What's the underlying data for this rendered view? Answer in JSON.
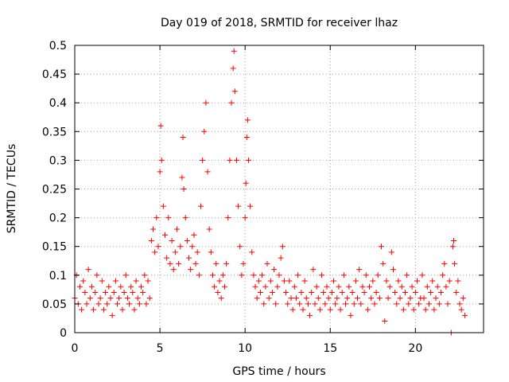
{
  "chart_data": {
    "type": "scatter",
    "title": "Day 019 of 2018, SRMTID for receiver lhaz",
    "xlabel": "GPS time / hours",
    "ylabel": "SRMTID / TECUs",
    "xlim": [
      0,
      24
    ],
    "ylim": [
      0,
      0.5
    ],
    "xticks": [
      0,
      5,
      10,
      15,
      20
    ],
    "xtick_labels": [
      "0",
      "5",
      "10",
      "15",
      "20"
    ],
    "yticks": [
      0,
      0.05,
      0.1,
      0.15,
      0.2,
      0.25,
      0.3,
      0.35,
      0.4,
      0.45,
      0.5
    ],
    "ytick_labels": [
      "0",
      "0.05",
      "0.1",
      "0.15",
      "0.2",
      "0.25",
      "0.3",
      "0.35",
      "0.4",
      "0.45",
      "0.5"
    ],
    "grid": true,
    "marker": "plus",
    "color": "#ff0000",
    "series": [
      {
        "name": "SRMTID",
        "points": [
          [
            0.0,
            0.06
          ],
          [
            0.1,
            0.1
          ],
          [
            0.2,
            0.05
          ],
          [
            0.3,
            0.08
          ],
          [
            0.4,
            0.04
          ],
          [
            0.5,
            0.09
          ],
          [
            0.6,
            0.07
          ],
          [
            0.7,
            0.05
          ],
          [
            0.8,
            0.11
          ],
          [
            0.9,
            0.06
          ],
          [
            1.0,
            0.08
          ],
          [
            1.1,
            0.04
          ],
          [
            1.2,
            0.07
          ],
          [
            1.3,
            0.1
          ],
          [
            1.4,
            0.05
          ],
          [
            1.5,
            0.06
          ],
          [
            1.6,
            0.09
          ],
          [
            1.7,
            0.04
          ],
          [
            1.8,
            0.07
          ],
          [
            1.9,
            0.05
          ],
          [
            2.0,
            0.08
          ],
          [
            2.1,
            0.06
          ],
          [
            2.2,
            0.03
          ],
          [
            2.3,
            0.07
          ],
          [
            2.4,
            0.09
          ],
          [
            2.5,
            0.05
          ],
          [
            2.6,
            0.06
          ],
          [
            2.7,
            0.08
          ],
          [
            2.8,
            0.04
          ],
          [
            2.9,
            0.07
          ],
          [
            3.0,
            0.1
          ],
          [
            3.1,
            0.06
          ],
          [
            3.2,
            0.05
          ],
          [
            3.3,
            0.08
          ],
          [
            3.4,
            0.07
          ],
          [
            3.5,
            0.04
          ],
          [
            3.6,
            0.09
          ],
          [
            3.7,
            0.06
          ],
          [
            3.8,
            0.05
          ],
          [
            3.9,
            0.08
          ],
          [
            4.0,
            0.07
          ],
          [
            4.1,
            0.1
          ],
          [
            4.2,
            0.05
          ],
          [
            4.3,
            0.09
          ],
          [
            4.4,
            0.06
          ],
          [
            4.5,
            0.16
          ],
          [
            4.6,
            0.18
          ],
          [
            4.7,
            0.14
          ],
          [
            4.8,
            0.2
          ],
          [
            4.9,
            0.15
          ],
          [
            5.0,
            0.28
          ],
          [
            5.05,
            0.36
          ],
          [
            5.1,
            0.3
          ],
          [
            5.2,
            0.22
          ],
          [
            5.3,
            0.17
          ],
          [
            5.4,
            0.13
          ],
          [
            5.5,
            0.2
          ],
          [
            5.6,
            0.12
          ],
          [
            5.7,
            0.16
          ],
          [
            5.8,
            0.11
          ],
          [
            5.9,
            0.14
          ],
          [
            6.0,
            0.18
          ],
          [
            6.1,
            0.12
          ],
          [
            6.2,
            0.15
          ],
          [
            6.3,
            0.27
          ],
          [
            6.35,
            0.34
          ],
          [
            6.4,
            0.25
          ],
          [
            6.5,
            0.2
          ],
          [
            6.6,
            0.16
          ],
          [
            6.7,
            0.13
          ],
          [
            6.8,
            0.11
          ],
          [
            6.9,
            0.15
          ],
          [
            7.0,
            0.17
          ],
          [
            7.1,
            0.12
          ],
          [
            7.2,
            0.14
          ],
          [
            7.3,
            0.1
          ],
          [
            7.4,
            0.22
          ],
          [
            7.5,
            0.3
          ],
          [
            7.6,
            0.35
          ],
          [
            7.7,
            0.4
          ],
          [
            7.8,
            0.28
          ],
          [
            7.9,
            0.18
          ],
          [
            8.0,
            0.14
          ],
          [
            8.1,
            0.1
          ],
          [
            8.2,
            0.08
          ],
          [
            8.3,
            0.12
          ],
          [
            8.4,
            0.07
          ],
          [
            8.5,
            0.09
          ],
          [
            8.6,
            0.06
          ],
          [
            8.7,
            0.1
          ],
          [
            8.8,
            0.08
          ],
          [
            8.9,
            0.12
          ],
          [
            9.0,
            0.2
          ],
          [
            9.1,
            0.3
          ],
          [
            9.2,
            0.4
          ],
          [
            9.3,
            0.46
          ],
          [
            9.35,
            0.49
          ],
          [
            9.4,
            0.42
          ],
          [
            9.5,
            0.3
          ],
          [
            9.6,
            0.22
          ],
          [
            9.7,
            0.15
          ],
          [
            9.8,
            0.1
          ],
          [
            9.9,
            0.12
          ],
          [
            10.0,
            0.2
          ],
          [
            10.05,
            0.26
          ],
          [
            10.1,
            0.34
          ],
          [
            10.15,
            0.37
          ],
          [
            10.2,
            0.3
          ],
          [
            10.3,
            0.22
          ],
          [
            10.4,
            0.14
          ],
          [
            10.5,
            0.1
          ],
          [
            10.6,
            0.08
          ],
          [
            10.7,
            0.06
          ],
          [
            10.8,
            0.09
          ],
          [
            10.9,
            0.07
          ],
          [
            11.0,
            0.1
          ],
          [
            11.1,
            0.05
          ],
          [
            11.2,
            0.08
          ],
          [
            11.3,
            0.12
          ],
          [
            11.4,
            0.06
          ],
          [
            11.5,
            0.09
          ],
          [
            11.6,
            0.07
          ],
          [
            11.7,
            0.11
          ],
          [
            11.8,
            0.05
          ],
          [
            11.9,
            0.08
          ],
          [
            12.0,
            0.1
          ],
          [
            12.1,
            0.13
          ],
          [
            12.2,
            0.15
          ],
          [
            12.3,
            0.09
          ],
          [
            12.4,
            0.07
          ],
          [
            12.5,
            0.05
          ],
          [
            12.6,
            0.09
          ],
          [
            12.7,
            0.06
          ],
          [
            12.8,
            0.04
          ],
          [
            12.9,
            0.08
          ],
          [
            13.0,
            0.06
          ],
          [
            13.1,
            0.1
          ],
          [
            13.2,
            0.05
          ],
          [
            13.3,
            0.07
          ],
          [
            13.4,
            0.04
          ],
          [
            13.5,
            0.09
          ],
          [
            13.6,
            0.06
          ],
          [
            13.7,
            0.05
          ],
          [
            13.8,
            0.03
          ],
          [
            13.9,
            0.07
          ],
          [
            14.0,
            0.11
          ],
          [
            14.1,
            0.05
          ],
          [
            14.2,
            0.08
          ],
          [
            14.3,
            0.06
          ],
          [
            14.4,
            0.04
          ],
          [
            14.5,
            0.1
          ],
          [
            14.6,
            0.07
          ],
          [
            14.7,
            0.05
          ],
          [
            14.8,
            0.08
          ],
          [
            14.9,
            0.06
          ],
          [
            15.0,
            0.04
          ],
          [
            15.1,
            0.07
          ],
          [
            15.2,
            0.09
          ],
          [
            15.3,
            0.05
          ],
          [
            15.4,
            0.06
          ],
          [
            15.5,
            0.08
          ],
          [
            15.6,
            0.04
          ],
          [
            15.7,
            0.07
          ],
          [
            15.8,
            0.1
          ],
          [
            15.9,
            0.05
          ],
          [
            16.0,
            0.06
          ],
          [
            16.1,
            0.08
          ],
          [
            16.2,
            0.03
          ],
          [
            16.3,
            0.07
          ],
          [
            16.4,
            0.05
          ],
          [
            16.5,
            0.09
          ],
          [
            16.6,
            0.06
          ],
          [
            16.7,
            0.11
          ],
          [
            16.8,
            0.05
          ],
          [
            16.9,
            0.08
          ],
          [
            17.0,
            0.07
          ],
          [
            17.1,
            0.1
          ],
          [
            17.2,
            0.04
          ],
          [
            17.3,
            0.08
          ],
          [
            17.4,
            0.06
          ],
          [
            17.5,
            0.09
          ],
          [
            17.6,
            0.05
          ],
          [
            17.7,
            0.07
          ],
          [
            17.8,
            0.1
          ],
          [
            17.9,
            0.06
          ],
          [
            18.0,
            0.15
          ],
          [
            18.1,
            0.12
          ],
          [
            18.2,
            0.02
          ],
          [
            18.3,
            0.09
          ],
          [
            18.4,
            0.06
          ],
          [
            18.5,
            0.08
          ],
          [
            18.6,
            0.14
          ],
          [
            18.7,
            0.11
          ],
          [
            18.8,
            0.07
          ],
          [
            18.9,
            0.05
          ],
          [
            19.0,
            0.09
          ],
          [
            19.1,
            0.06
          ],
          [
            19.2,
            0.08
          ],
          [
            19.3,
            0.04
          ],
          [
            19.4,
            0.07
          ],
          [
            19.5,
            0.1
          ],
          [
            19.6,
            0.05
          ],
          [
            19.7,
            0.06
          ],
          [
            19.8,
            0.08
          ],
          [
            19.9,
            0.04
          ],
          [
            20.0,
            0.07
          ],
          [
            20.1,
            0.09
          ],
          [
            20.2,
            0.05
          ],
          [
            20.3,
            0.06
          ],
          [
            20.4,
            0.1
          ],
          [
            20.5,
            0.06
          ],
          [
            20.6,
            0.04
          ],
          [
            20.7,
            0.08
          ],
          [
            20.8,
            0.05
          ],
          [
            20.9,
            0.07
          ],
          [
            21.0,
            0.09
          ],
          [
            21.1,
            0.04
          ],
          [
            21.2,
            0.06
          ],
          [
            21.3,
            0.08
          ],
          [
            21.4,
            0.05
          ],
          [
            21.5,
            0.07
          ],
          [
            21.6,
            0.1
          ],
          [
            21.7,
            0.12
          ],
          [
            21.8,
            0.08
          ],
          [
            21.9,
            0.05
          ],
          [
            22.0,
            0.09
          ],
          [
            22.1,
            0.0
          ],
          [
            22.2,
            0.15
          ],
          [
            22.25,
            0.16
          ],
          [
            22.3,
            0.12
          ],
          [
            22.4,
            0.07
          ],
          [
            22.5,
            0.09
          ],
          [
            22.6,
            0.05
          ],
          [
            22.7,
            0.04
          ],
          [
            22.8,
            0.06
          ],
          [
            22.9,
            0.03
          ]
        ]
      }
    ]
  }
}
